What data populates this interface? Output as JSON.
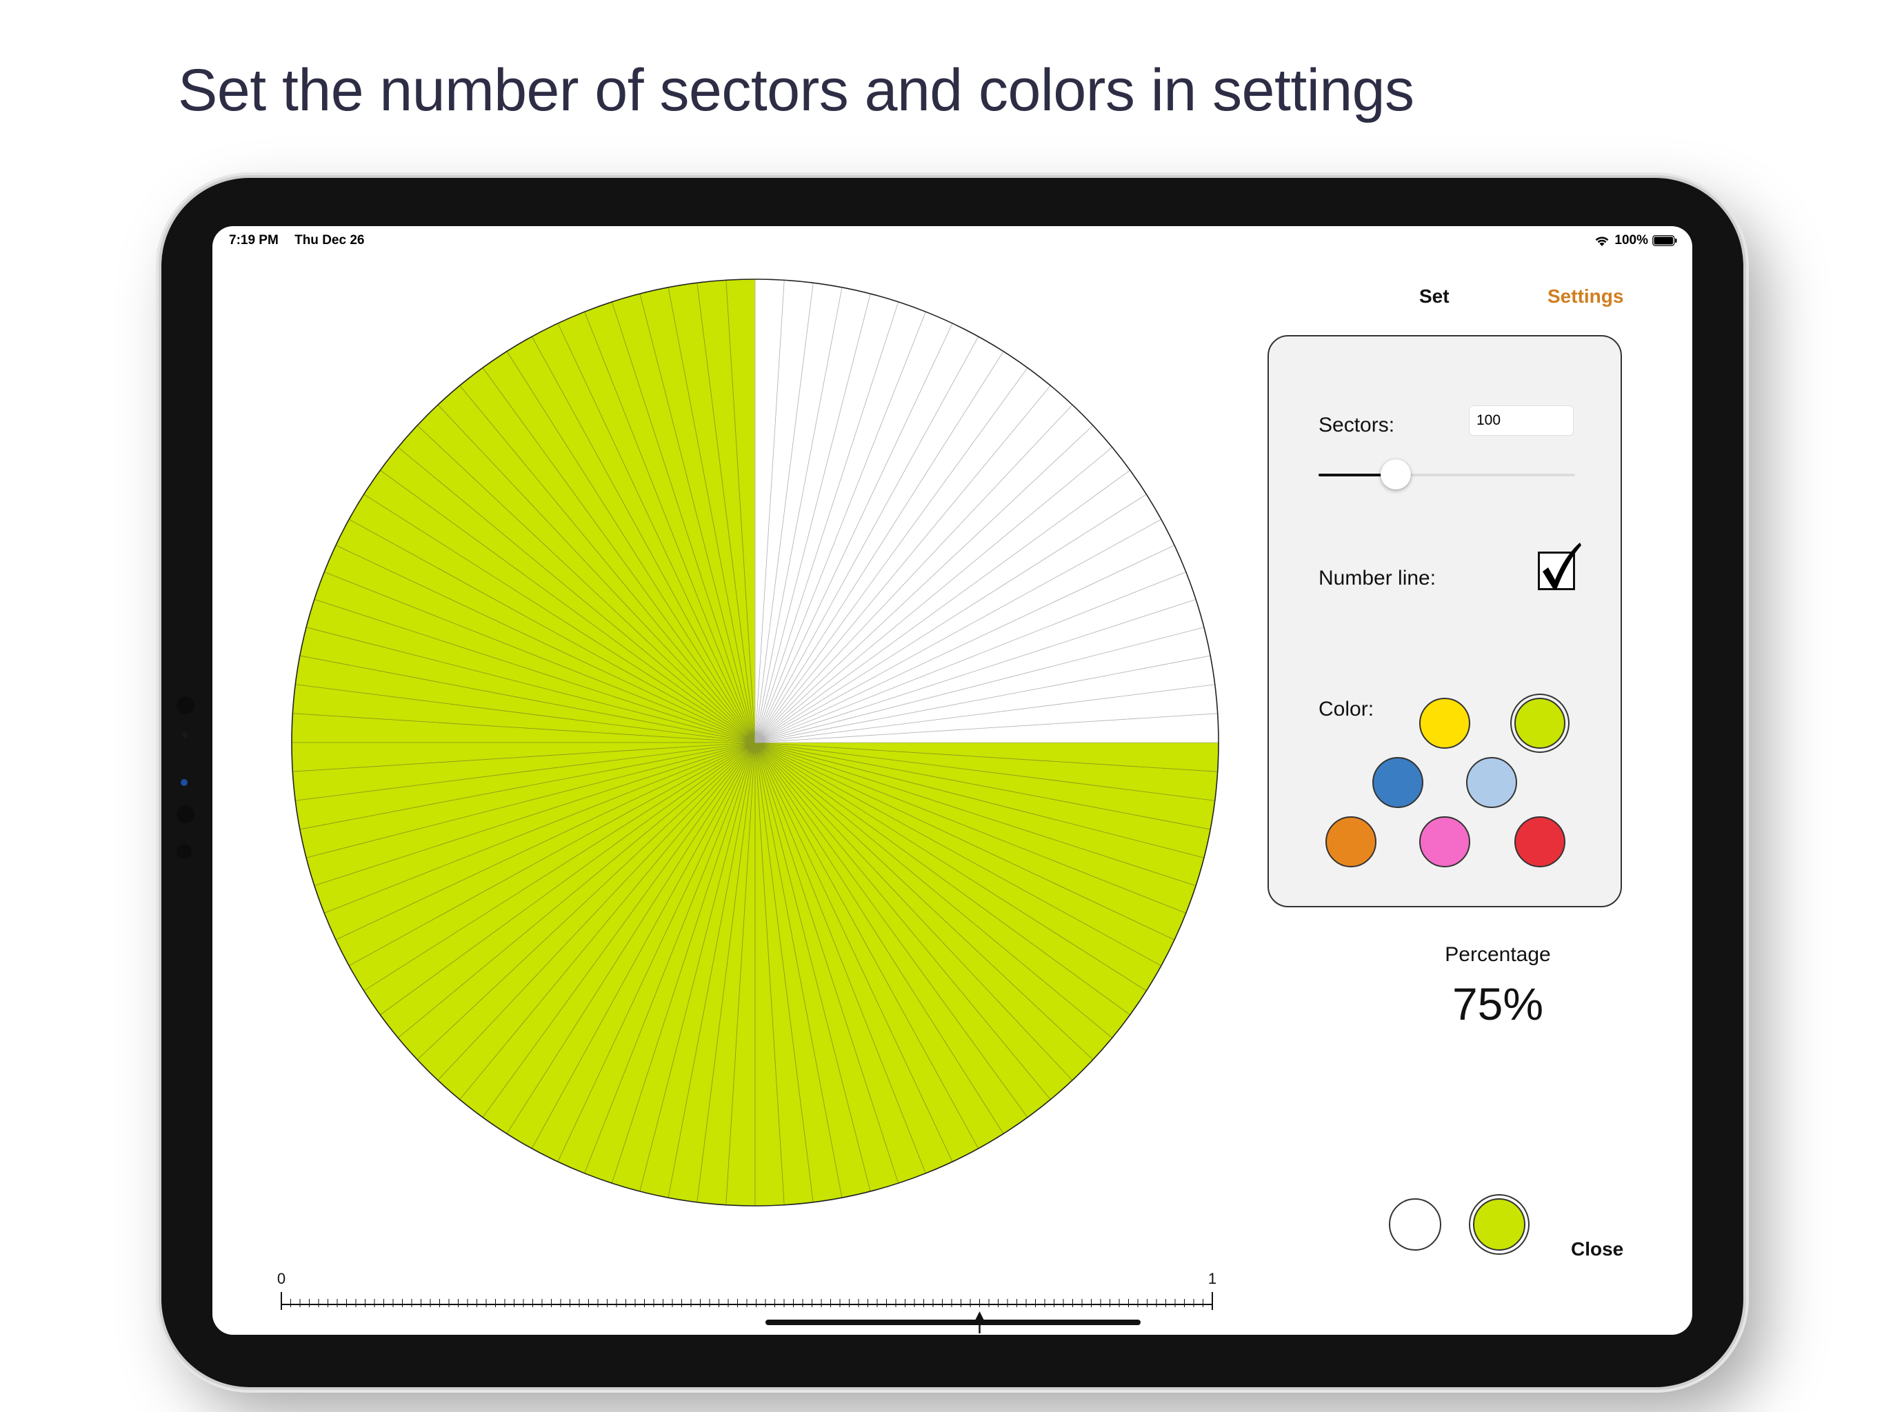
{
  "headline": "Set the number of sectors and colors in settings",
  "status_bar": {
    "time": "7:19 PM",
    "date": "Thu Dec 26",
    "battery": "100%"
  },
  "nav": {
    "set_label": "Set",
    "settings_label": "Settings"
  },
  "settings": {
    "sectors_label": "Sectors:",
    "sectors_value": "100",
    "sectors_slider_fraction": 0.3,
    "number_line_label": "Number line:",
    "number_line_checked": true,
    "color_label": "Color:",
    "colors": [
      {
        "name": "yellow",
        "hex": "#FFE000",
        "selected": false
      },
      {
        "name": "lime",
        "hex": "#C8E400",
        "selected": true
      },
      {
        "name": "blue",
        "hex": "#3B7DC2",
        "selected": false
      },
      {
        "name": "light-blue",
        "hex": "#AECBEA",
        "selected": false
      },
      {
        "name": "orange",
        "hex": "#E8861E",
        "selected": false
      },
      {
        "name": "pink",
        "hex": "#F46CC7",
        "selected": false
      },
      {
        "name": "red",
        "hex": "#E8303B",
        "selected": false
      }
    ]
  },
  "pie": {
    "sectors": 100,
    "filled": 75,
    "fill_color": "#C8E400",
    "empty_color": "#FFFFFF"
  },
  "percentage": {
    "label": "Percentage",
    "value": "75%"
  },
  "bottom_colors": [
    {
      "name": "white",
      "hex": "#FFFFFF"
    },
    {
      "name": "lime",
      "hex": "#C8E400",
      "selected": true
    }
  ],
  "close_label": "Close",
  "number_line": {
    "start_label": "0",
    "end_label": "1",
    "ticks": 100,
    "marker_value": 0.75
  }
}
